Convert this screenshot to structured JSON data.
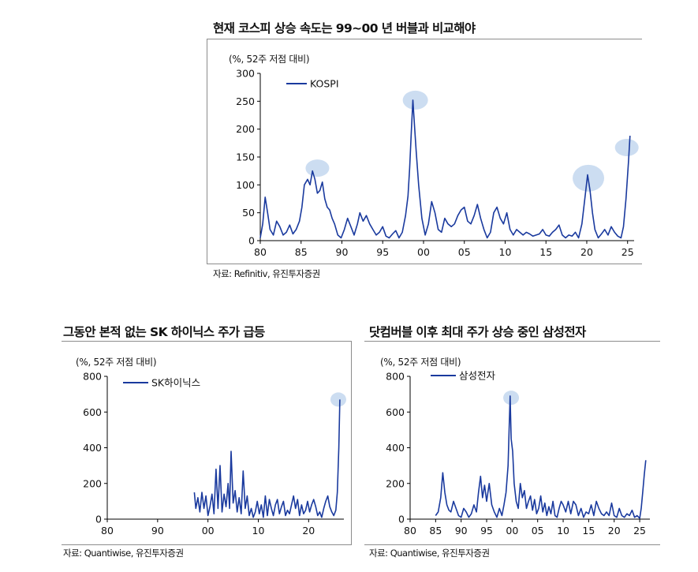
{
  "palette": {
    "line": "#1a3a9e",
    "highlight": "#c9dbf0",
    "axis": "#000000"
  },
  "chart_data": [
    {
      "id": "kospi",
      "type": "line",
      "title": "현재 코스피 상승 속도는 99~00 년 버블과 비교해야",
      "unit_label": "(%, 52주 저점 대비)",
      "source": "자료: Refinitiv, 유진투자증권",
      "legend": "top-left",
      "grid": false,
      "xlim": [
        1981,
        2026.8
      ],
      "ylim": [
        0,
        300
      ],
      "x_ticks": [
        1981,
        1986,
        1991,
        1996,
        2001,
        2006,
        2011,
        2016,
        2021,
        2026
      ],
      "x_tick_labels": [
        "80",
        "85",
        "90",
        "95",
        "00",
        "05",
        "10",
        "15",
        "20",
        "25"
      ],
      "y_ticks": [
        0,
        50,
        100,
        150,
        200,
        250,
        300
      ],
      "y_tick_labels": [
        "0",
        "50",
        "100",
        "150",
        "200",
        "250",
        "300"
      ],
      "series": [
        {
          "name": "KOSPI",
          "x": [
            1981,
            1981.3,
            1981.6,
            1981.9,
            1982.2,
            1982.6,
            1983,
            1983.4,
            1983.8,
            1984.2,
            1984.6,
            1985,
            1985.4,
            1985.8,
            1986.1,
            1986.4,
            1986.8,
            1987.1,
            1987.4,
            1987.7,
            1988,
            1988.3,
            1988.6,
            1988.9,
            1989.2,
            1989.5,
            1989.8,
            1990.1,
            1990.5,
            1990.9,
            1991.3,
            1991.7,
            1992.1,
            1992.5,
            1992.9,
            1993.2,
            1993.6,
            1994,
            1994.4,
            1994.8,
            1995.2,
            1995.6,
            1996,
            1996.4,
            1996.8,
            1997.2,
            1997.6,
            1998,
            1998.4,
            1998.8,
            1999.1,
            1999.3,
            1999.5,
            1999.7,
            1999.9,
            2000.1,
            2000.4,
            2000.8,
            2001.2,
            2001.6,
            2002,
            2002.4,
            2002.8,
            2003.2,
            2003.6,
            2004,
            2004.4,
            2004.8,
            2005.2,
            2005.6,
            2006,
            2006.4,
            2006.8,
            2007.2,
            2007.6,
            2008,
            2008.4,
            2008.8,
            2009.2,
            2009.6,
            2010,
            2010.4,
            2010.8,
            2011.2,
            2011.6,
            2012,
            2012.4,
            2012.8,
            2013.2,
            2013.6,
            2014,
            2014.4,
            2014.8,
            2015.2,
            2015.6,
            2016,
            2016.4,
            2016.8,
            2017.2,
            2017.6,
            2018,
            2018.4,
            2018.8,
            2019.2,
            2019.6,
            2020,
            2020.4,
            2020.8,
            2021.1,
            2021.4,
            2021.7,
            2022,
            2022.4,
            2022.8,
            2023.2,
            2023.6,
            2024,
            2024.4,
            2024.8,
            2025.2,
            2025.5,
            2025.8,
            2026.1,
            2026.3
          ],
          "y": [
            5,
            30,
            78,
            50,
            20,
            10,
            35,
            25,
            10,
            15,
            28,
            12,
            20,
            35,
            60,
            100,
            110,
            100,
            125,
            110,
            85,
            90,
            105,
            75,
            60,
            55,
            40,
            30,
            10,
            5,
            20,
            40,
            25,
            10,
            30,
            50,
            35,
            45,
            30,
            20,
            10,
            15,
            25,
            8,
            5,
            12,
            18,
            5,
            15,
            45,
            80,
            130,
            195,
            252,
            205,
            160,
            100,
            40,
            10,
            30,
            70,
            50,
            20,
            15,
            40,
            30,
            25,
            30,
            45,
            55,
            60,
            35,
            30,
            45,
            65,
            40,
            20,
            5,
            15,
            50,
            60,
            40,
            30,
            50,
            20,
            10,
            20,
            15,
            10,
            15,
            12,
            8,
            10,
            12,
            20,
            10,
            8,
            15,
            20,
            28,
            10,
            5,
            10,
            8,
            15,
            5,
            30,
            80,
            118,
            90,
            50,
            20,
            5,
            12,
            20,
            10,
            25,
            15,
            8,
            5,
            25,
            75,
            140,
            188
          ],
          "highlights": [
            {
              "x": 1988,
              "y": 130
            },
            {
              "x": 2000,
              "y": 252
            },
            {
              "x": 2021.2,
              "y": 112
            },
            {
              "x": 2025.9,
              "y": 167
            }
          ]
        }
      ]
    },
    {
      "id": "skhynix",
      "type": "line",
      "title": "그동안 본적 없는 SK 하이닉스 주가 급등",
      "unit_label": "(%, 52주 저점 대비)",
      "source": "자료: Quantiwise, 유진투자증권",
      "legend": "top-left",
      "grid": false,
      "xlim": [
        1980,
        2027
      ],
      "ylim": [
        0,
        800
      ],
      "x_ticks": [
        1980,
        1990,
        2000,
        2010,
        2020
      ],
      "x_tick_labels": [
        "80",
        "90",
        "00",
        "10",
        "20"
      ],
      "y_ticks": [
        0,
        200,
        400,
        600,
        800
      ],
      "y_tick_labels": [
        "0",
        "200",
        "400",
        "600",
        "800"
      ],
      "series": [
        {
          "name": "SK하이닉스",
          "x": [
            1997.3,
            1997.6,
            1998,
            1998.4,
            1998.8,
            1999.2,
            1999.6,
            2000,
            2000.4,
            2000.8,
            2001.2,
            2001.6,
            2002,
            2002.4,
            2002.8,
            2003.2,
            2003.6,
            2004,
            2004.3,
            2004.6,
            2005,
            2005.4,
            2005.8,
            2006.2,
            2006.6,
            2007,
            2007.4,
            2007.8,
            2008.2,
            2008.6,
            2009,
            2009.4,
            2009.8,
            2010.2,
            2010.6,
            2011,
            2011.4,
            2011.8,
            2012.2,
            2012.6,
            2013,
            2013.4,
            2013.8,
            2014.2,
            2014.6,
            2015,
            2015.4,
            2015.8,
            2016.2,
            2016.6,
            2017,
            2017.4,
            2017.8,
            2018.2,
            2018.6,
            2019,
            2019.4,
            2019.8,
            2020.2,
            2020.6,
            2021,
            2021.4,
            2021.8,
            2022.2,
            2022.6,
            2023,
            2023.4,
            2023.8,
            2024.2,
            2024.6,
            2025,
            2025.4,
            2025.7,
            2026,
            2026.2
          ],
          "y": [
            150,
            60,
            120,
            40,
            150,
            60,
            130,
            20,
            70,
            140,
            30,
            280,
            60,
            300,
            40,
            140,
            70,
            200,
            60,
            380,
            90,
            160,
            40,
            120,
            30,
            270,
            60,
            130,
            20,
            60,
            10,
            40,
            100,
            30,
            80,
            10,
            130,
            20,
            110,
            60,
            20,
            80,
            110,
            30,
            70,
            100,
            20,
            50,
            30,
            80,
            130,
            60,
            110,
            20,
            80,
            30,
            50,
            100,
            40,
            80,
            110,
            70,
            20,
            40,
            10,
            60,
            100,
            130,
            70,
            40,
            20,
            50,
            150,
            400,
            670
          ],
          "highlights": [
            {
              "x": 2025.9,
              "y": 670
            }
          ]
        }
      ]
    },
    {
      "id": "samsung",
      "type": "line",
      "title": "닷컴버블 이후 최대 주가 상승 중인 삼성전자",
      "unit_label": "(%, 52주 저점 대비)",
      "source": "자료: Quantiwise, 유진투자증권",
      "legend": "top-left",
      "grid": false,
      "xlim": [
        1980,
        2027
      ],
      "ylim": [
        0,
        800
      ],
      "x_ticks": [
        1980,
        1985,
        1990,
        1995,
        2000,
        2005,
        2010,
        2015,
        2020,
        2025
      ],
      "x_tick_labels": [
        "80",
        "85",
        "90",
        "95",
        "00",
        "05",
        "10",
        "15",
        "20",
        "25"
      ],
      "y_ticks": [
        0,
        200,
        400,
        600,
        800
      ],
      "y_tick_labels": [
        "0",
        "200",
        "400",
        "600",
        "800"
      ],
      "series": [
        {
          "name": "삼성전자",
          "x": [
            1985,
            1985.5,
            1986,
            1986.4,
            1986.8,
            1987.2,
            1987.6,
            1988,
            1988.5,
            1989,
            1989.5,
            1990,
            1990.5,
            1991,
            1991.5,
            1992,
            1992.5,
            1993,
            1993.4,
            1993.8,
            1994.2,
            1994.6,
            1995,
            1995.5,
            1996,
            1996.5,
            1997,
            1997.5,
            1998,
            1998.4,
            1998.8,
            1999.2,
            1999.4,
            1999.6,
            1999.8,
            2000.1,
            2000.4,
            2000.8,
            2001.2,
            2001.6,
            2002,
            2002.4,
            2002.8,
            2003.2,
            2003.6,
            2004,
            2004.4,
            2004.8,
            2005.2,
            2005.6,
            2006,
            2006.4,
            2006.8,
            2007.2,
            2007.6,
            2008,
            2008.4,
            2008.8,
            2009.2,
            2009.6,
            2010,
            2010.5,
            2011,
            2011.5,
            2012,
            2012.5,
            2013,
            2013.5,
            2014,
            2014.5,
            2015,
            2015.5,
            2016,
            2016.5,
            2017,
            2017.5,
            2018,
            2018.5,
            2019,
            2019.5,
            2020,
            2020.5,
            2021,
            2021.5,
            2022,
            2022.5,
            2023,
            2023.5,
            2024,
            2024.5,
            2025,
            2025.3,
            2025.6,
            2025.9,
            2026.2
          ],
          "y": [
            20,
            40,
            120,
            260,
            150,
            80,
            50,
            40,
            100,
            60,
            20,
            10,
            60,
            40,
            10,
            30,
            80,
            40,
            150,
            240,
            120,
            190,
            100,
            200,
            80,
            40,
            10,
            60,
            20,
            80,
            150,
            300,
            500,
            690,
            450,
            380,
            200,
            100,
            60,
            200,
            120,
            160,
            60,
            100,
            130,
            50,
            110,
            30,
            60,
            130,
            40,
            90,
            20,
            70,
            30,
            100,
            20,
            10,
            60,
            100,
            80,
            40,
            100,
            30,
            100,
            80,
            20,
            60,
            10,
            40,
            30,
            80,
            20,
            100,
            60,
            30,
            20,
            40,
            20,
            90,
            20,
            10,
            60,
            20,
            10,
            30,
            20,
            50,
            10,
            20,
            5,
            60,
            150,
            250,
            330
          ],
          "highlights": [
            {
              "x": 1999.8,
              "y": 680
            }
          ]
        }
      ]
    }
  ]
}
